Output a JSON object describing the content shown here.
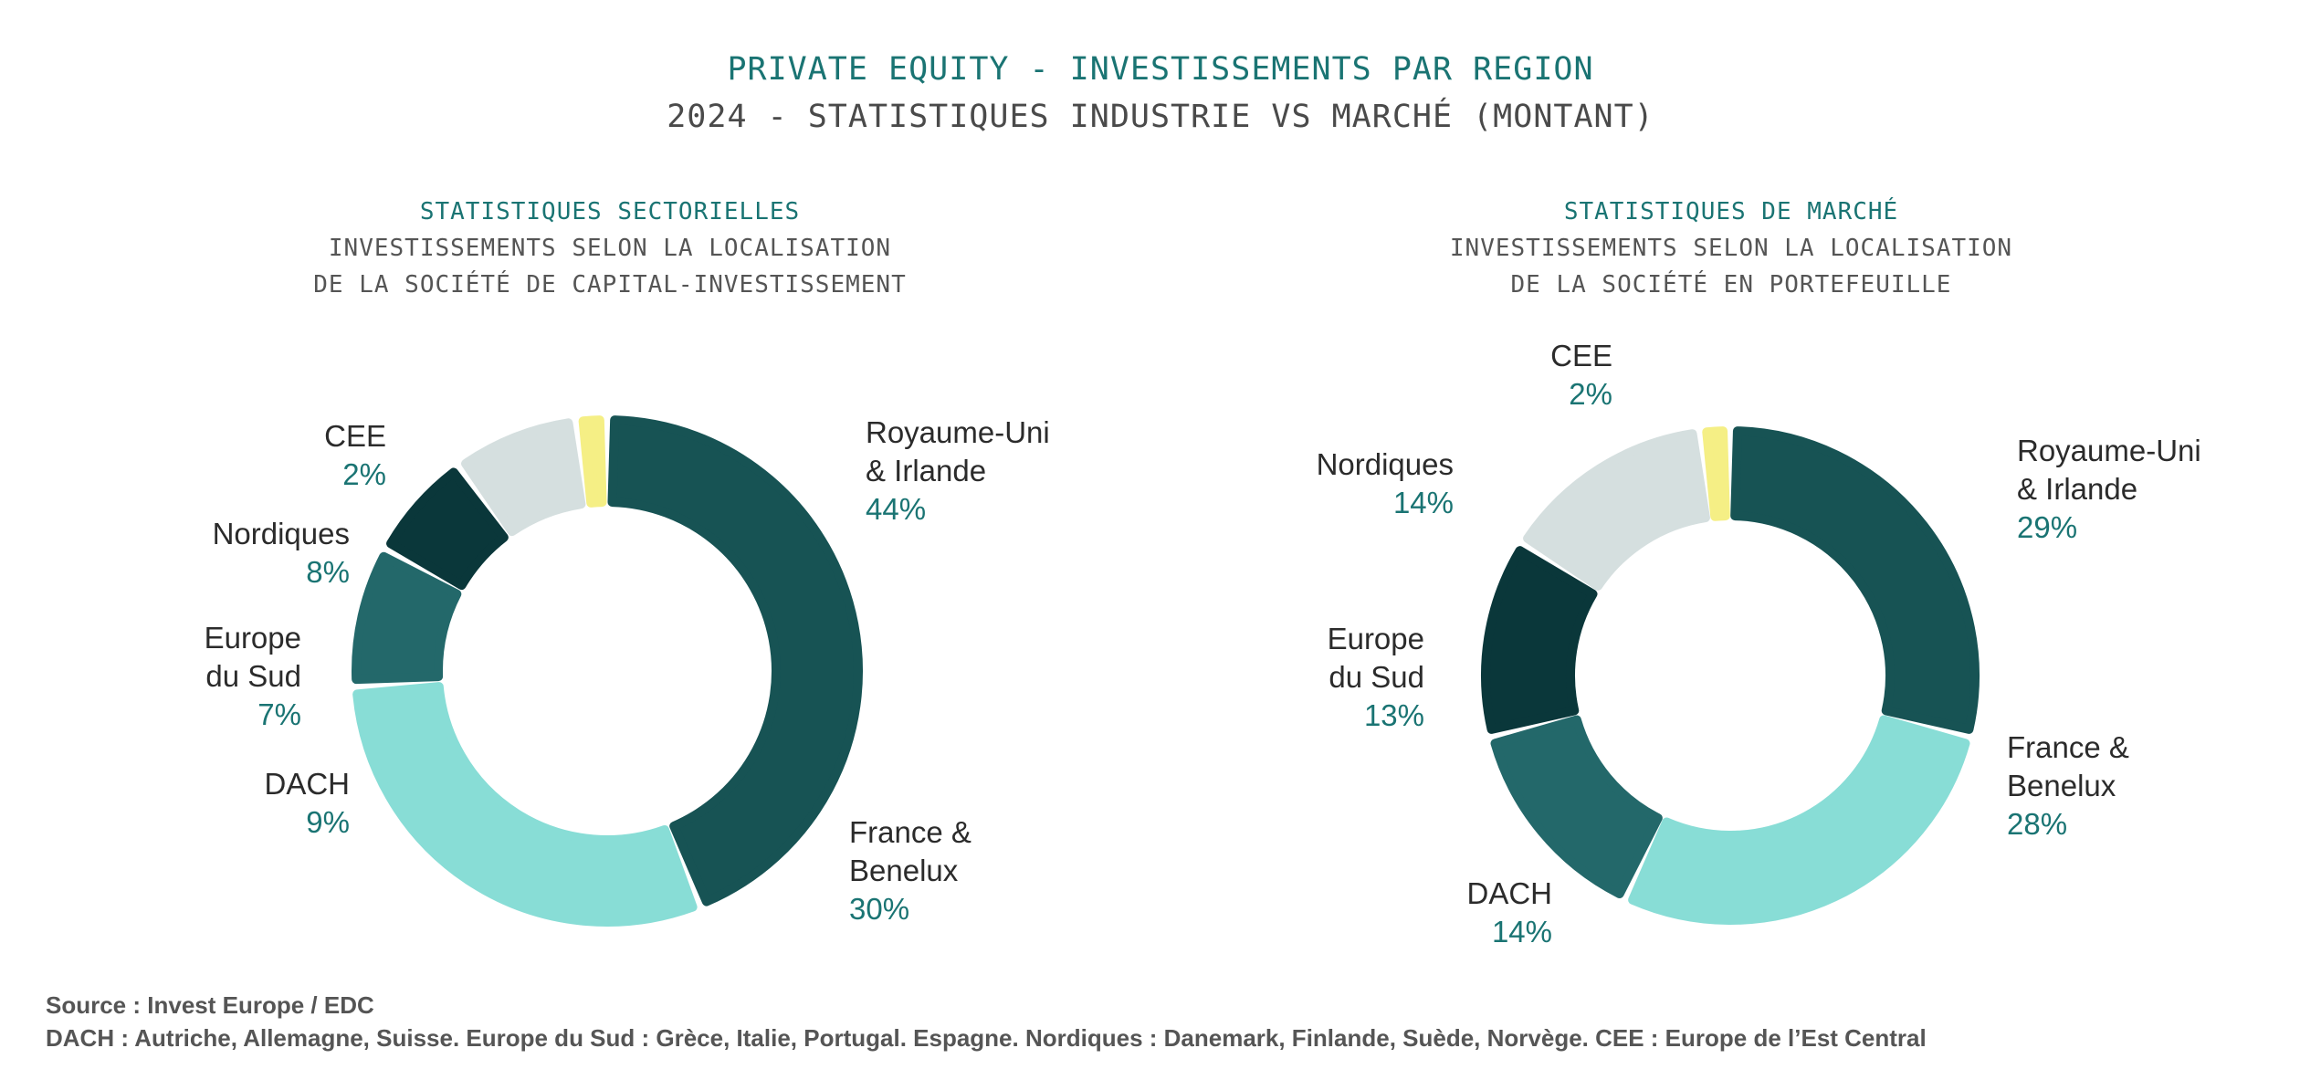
{
  "header": {
    "title": "PRIVATE EQUITY - INVESTISSEMENTS PAR REGION",
    "subtitle": "2024 - STATISTIQUES INDUSTRIE VS MARCHÉ (MONTANT)"
  },
  "colors": {
    "Royaume-Uni & Irlande": "#175354",
    "France & Benelux": "#88ddd6",
    "DACH": "#23686a",
    "Europe du Sud": "#0a373a",
    "Nordiques": "#d5dfdf",
    "CEE": "#f5ef85"
  },
  "chart_data": [
    {
      "type": "pie",
      "title": "STATISTIQUES SECTORIELLES",
      "subtitle_lines": [
        "INVESTISSEMENTS SELON LA LOCALISATION",
        "DE LA SOCIÉTÉ DE CAPITAL-INVESTISSEMENT"
      ],
      "unit": "%",
      "slices": [
        {
          "name": "Royaume-Uni & Irlande",
          "label_lines": [
            "Royaume-Uni",
            "& Irlande"
          ],
          "value": 44,
          "pct_label": "44%"
        },
        {
          "name": "France & Benelux",
          "label_lines": [
            "France &",
            "Benelux"
          ],
          "value": 30,
          "pct_label": "30%"
        },
        {
          "name": "DACH",
          "label_lines": [
            "DACH"
          ],
          "value": 9,
          "pct_label": "9%"
        },
        {
          "name": "Europe du Sud",
          "label_lines": [
            "Europe",
            "du Sud"
          ],
          "value": 7,
          "pct_label": "7%"
        },
        {
          "name": "Nordiques",
          "label_lines": [
            "Nordiques"
          ],
          "value": 8,
          "pct_label": "8%"
        },
        {
          "name": "CEE",
          "label_lines": [
            "CEE"
          ],
          "value": 2,
          "pct_label": "2%"
        }
      ]
    },
    {
      "type": "pie",
      "title": "STATISTIQUES DE MARCHÉ",
      "subtitle_lines": [
        "INVESTISSEMENTS SELON LA LOCALISATION",
        "DE LA SOCIÉTÉ EN PORTEFEUILLE"
      ],
      "unit": "%",
      "slices": [
        {
          "name": "Royaume-Uni & Irlande",
          "label_lines": [
            "Royaume-Uni",
            "& Irlande"
          ],
          "value": 29,
          "pct_label": "29%"
        },
        {
          "name": "France & Benelux",
          "label_lines": [
            "France &",
            "Benelux"
          ],
          "value": 28,
          "pct_label": "28%"
        },
        {
          "name": "DACH",
          "label_lines": [
            "DACH"
          ],
          "value": 14,
          "pct_label": "14%"
        },
        {
          "name": "Europe du Sud",
          "label_lines": [
            "Europe",
            "du Sud"
          ],
          "value": 13,
          "pct_label": "13%"
        },
        {
          "name": "Nordiques",
          "label_lines": [
            "Nordiques"
          ],
          "value": 14,
          "pct_label": "14%"
        },
        {
          "name": "CEE",
          "label_lines": [
            "CEE"
          ],
          "value": 2,
          "pct_label": "2%"
        }
      ]
    }
  ],
  "footer": {
    "source": "Source : Invest Europe / EDC",
    "note": "DACH : Autriche, Allemagne, Suisse. Europe du Sud : Grèce, Italie, Portugal. Espagne. Nordiques : Danemark, Finlande, Suède, Norvège. CEE : Europe de l’Est Central"
  }
}
